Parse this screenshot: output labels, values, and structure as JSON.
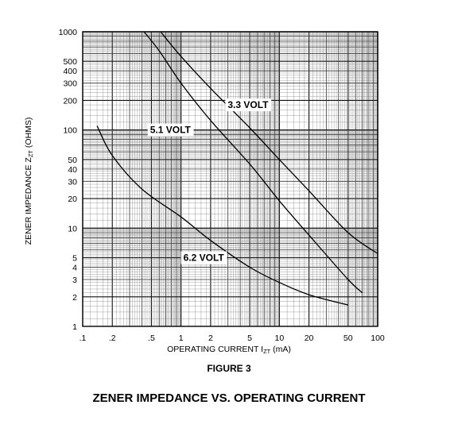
{
  "chart_data": {
    "type": "line",
    "xscale": "log",
    "yscale": "log",
    "xlim": [
      0.1,
      100
    ],
    "ylim": [
      1,
      1000
    ],
    "grid": true,
    "xlabel": "OPERATING CURRENT I",
    "xlabel_sub": "ZT",
    "xlabel_unit": " (mA)",
    "ylabel": "ZENER IMPEDANCE Z",
    "ylabel_sub": "ZT",
    "ylabel_unit": " (OHMS)",
    "xticks": [
      {
        "v": 0.1,
        "label": ".1"
      },
      {
        "v": 0.2,
        "label": ".2"
      },
      {
        "v": 0.5,
        "label": ".5"
      },
      {
        "v": 1,
        "label": "1"
      },
      {
        "v": 2,
        "label": "2"
      },
      {
        "v": 5,
        "label": "5"
      },
      {
        "v": 10,
        "label": "10"
      },
      {
        "v": 20,
        "label": "20"
      },
      {
        "v": 50,
        "label": "50"
      },
      {
        "v": 100,
        "label": "100"
      }
    ],
    "yticks": [
      {
        "v": 1,
        "label": "1"
      },
      {
        "v": 2,
        "label": "2"
      },
      {
        "v": 3,
        "label": "3"
      },
      {
        "v": 4,
        "label": "4"
      },
      {
        "v": 5,
        "label": "5"
      },
      {
        "v": 10,
        "label": "10"
      },
      {
        "v": 20,
        "label": "20"
      },
      {
        "v": 30,
        "label": "30"
      },
      {
        "v": 40,
        "label": "40"
      },
      {
        "v": 50,
        "label": "50"
      },
      {
        "v": 100,
        "label": "100"
      },
      {
        "v": 200,
        "label": "200"
      },
      {
        "v": 300,
        "label": "300"
      },
      {
        "v": 400,
        "label": "400"
      },
      {
        "v": 500,
        "label": "500"
      },
      {
        "v": 1000,
        "label": "1000"
      }
    ],
    "series": [
      {
        "name": "3.3 VOLT",
        "label_at": [
          4.8,
          180
        ],
        "points": [
          [
            0.62,
            1000
          ],
          [
            1,
            560
          ],
          [
            2,
            265
          ],
          [
            5,
            105
          ],
          [
            10,
            50
          ],
          [
            20,
            24
          ],
          [
            50,
            9
          ],
          [
            100,
            5.5
          ]
        ]
      },
      {
        "name": "5.1 VOLT",
        "label_at": [
          0.78,
          100
        ],
        "points": [
          [
            0.42,
            1000
          ],
          [
            0.6,
            640
          ],
          [
            1,
            300
          ],
          [
            2,
            125
          ],
          [
            5,
            45
          ],
          [
            10,
            19
          ],
          [
            20,
            8.5
          ],
          [
            50,
            3
          ],
          [
            70,
            2.2
          ]
        ]
      },
      {
        "name": "6.2 VOLT",
        "label_at": [
          1.7,
          5
        ],
        "points": [
          [
            0.14,
            110
          ],
          [
            0.2,
            55
          ],
          [
            0.4,
            25
          ],
          [
            1,
            13
          ],
          [
            2,
            7.5
          ],
          [
            5,
            4
          ],
          [
            10,
            2.8
          ],
          [
            20,
            2.1
          ],
          [
            50,
            1.65
          ]
        ]
      }
    ]
  },
  "figure_label": "FIGURE 3",
  "title": "ZENER IMPEDANCE VS. OPERATING CURRENT"
}
